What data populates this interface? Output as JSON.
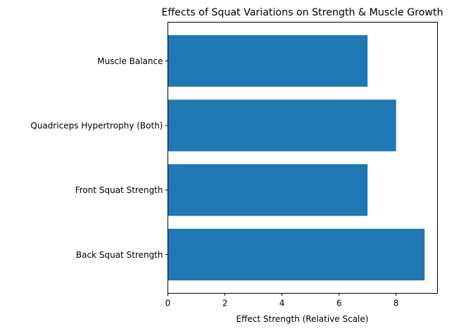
{
  "chart_data": {
    "type": "bar",
    "orientation": "horizontal",
    "title": "Effects of Squat Variations on Strength & Muscle Growth",
    "xlabel": "Effect Strength (Relative Scale)",
    "ylabel": "",
    "categories": [
      "Back Squat Strength",
      "Front Squat Strength",
      "Quadriceps Hypertrophy (Both)",
      "Muscle Balance"
    ],
    "values": [
      9,
      7,
      8,
      7
    ],
    "xlim": [
      0,
      9.45
    ],
    "xticks": [
      0,
      2,
      4,
      6,
      8
    ],
    "xtick_labels": [
      "0",
      "2",
      "4",
      "6",
      "8"
    ],
    "grid": false,
    "bar_color": "#1f77b4"
  }
}
